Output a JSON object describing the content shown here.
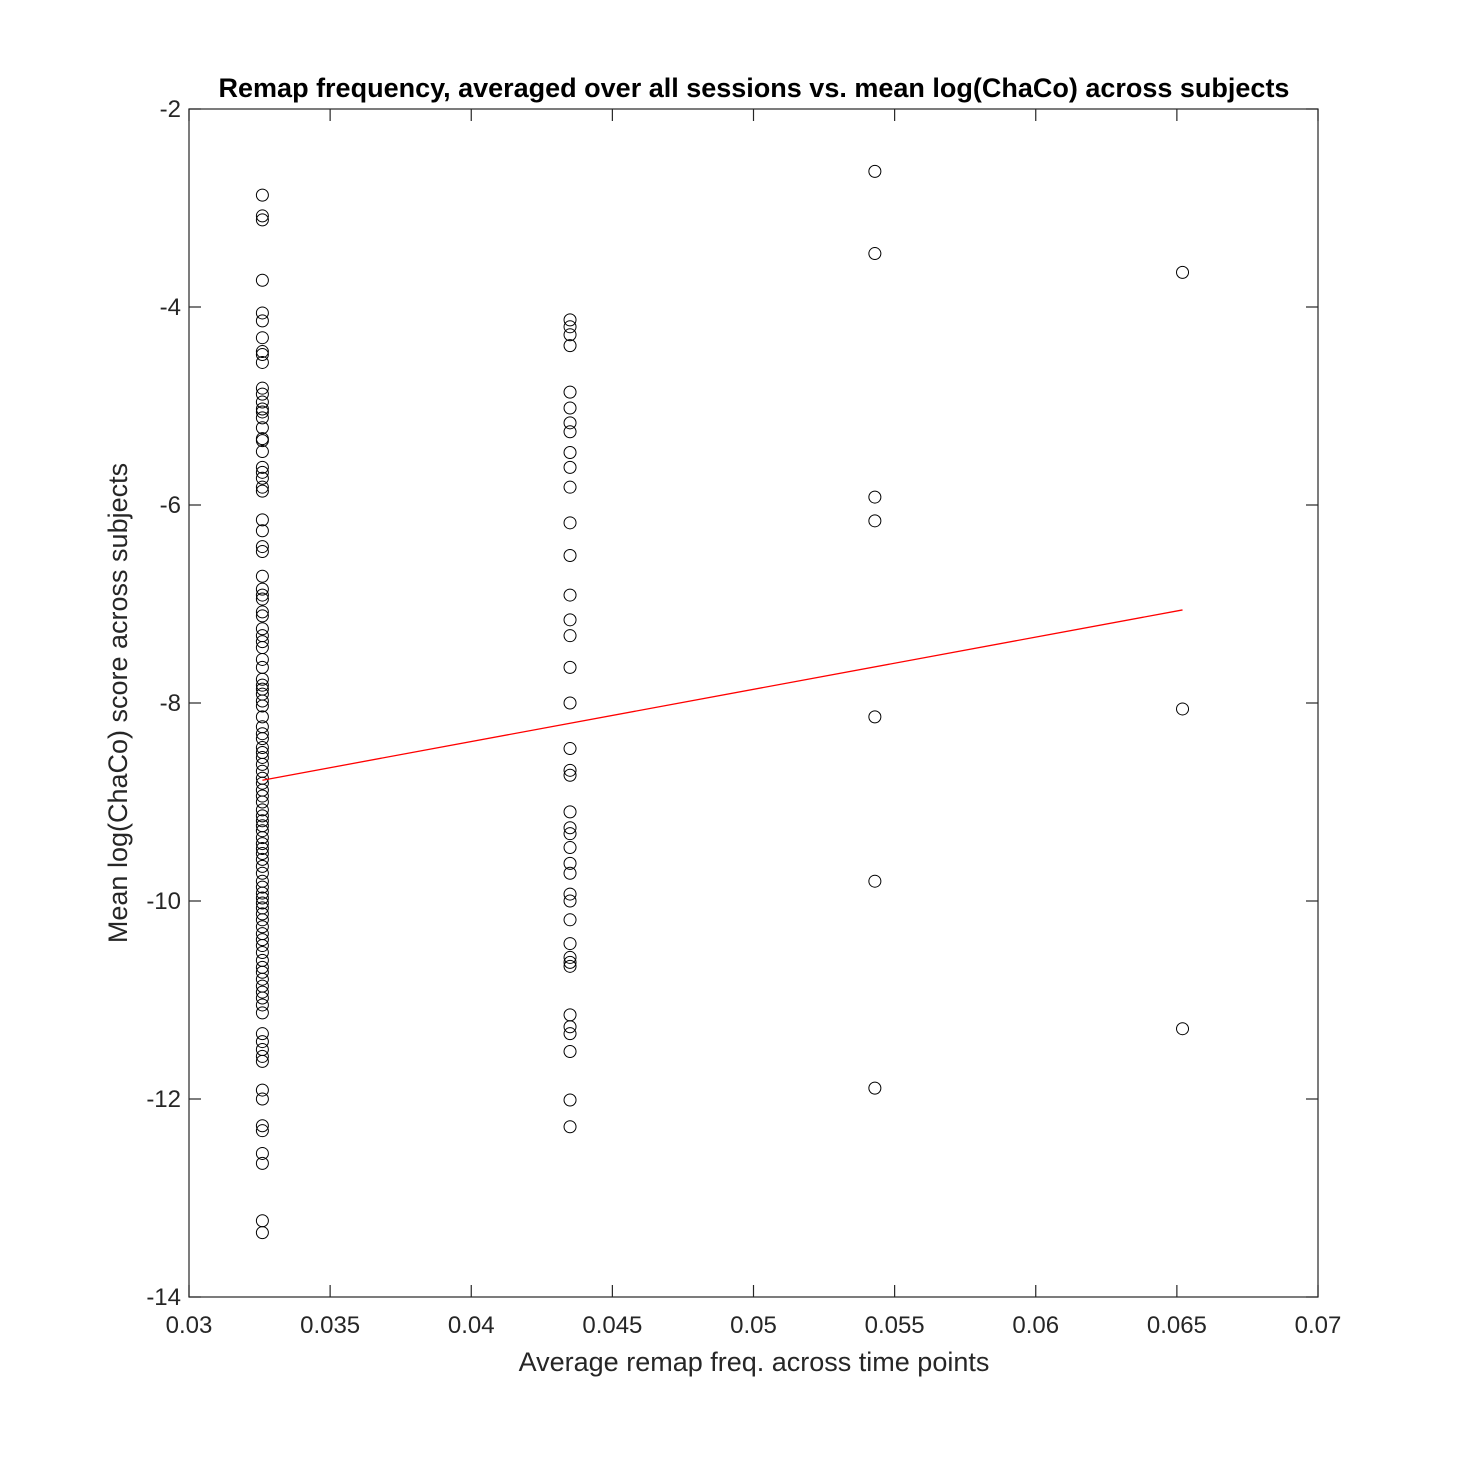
{
  "chart_data": {
    "type": "scatter",
    "title": "Remap frequency, averaged over all sessions vs. mean log(ChaCo) across subjects",
    "xlabel": "Average remap freq. across time points",
    "ylabel": "Mean log(ChaCo) score across subjects",
    "xlim": [
      0.03,
      0.07
    ],
    "ylim": [
      -14,
      -2
    ],
    "xticks": [
      0.03,
      0.035,
      0.04,
      0.045,
      0.05,
      0.055,
      0.06,
      0.065,
      0.07
    ],
    "xtick_labels": [
      "0.03",
      "0.035",
      "0.04",
      "0.045",
      "0.05",
      "0.055",
      "0.06",
      "0.065",
      "0.07"
    ],
    "yticks": [
      -14,
      -12,
      -10,
      -8,
      -6,
      -4,
      -2
    ],
    "ytick_labels": [
      "-14",
      "-12",
      "-10",
      "-8",
      "-6",
      "-4",
      "-2"
    ],
    "grid": false,
    "colors": {
      "points": "#000000",
      "fit_line": "#ff0000",
      "axes": "#262626"
    },
    "series": [
      {
        "x_value": 0.0326,
        "y": [
          -2.87,
          -3.08,
          -3.12,
          -3.73,
          -4.06,
          -4.14,
          -4.31,
          -4.45,
          -4.48,
          -4.56,
          -4.82,
          -4.88,
          -4.96,
          -5.03,
          -5.06,
          -5.12,
          -5.22,
          -5.33,
          -5.35,
          -5.46,
          -5.62,
          -5.67,
          -5.73,
          -5.82,
          -5.86,
          -6.15,
          -6.26,
          -6.42,
          -6.47,
          -6.72,
          -6.85,
          -6.91,
          -6.95,
          -7.08,
          -7.12,
          -7.25,
          -7.32,
          -7.38,
          -7.44,
          -7.56,
          -7.64,
          -7.76,
          -7.82,
          -7.86,
          -7.91,
          -7.98,
          -8.03,
          -8.14,
          -8.24,
          -8.31,
          -8.36,
          -8.45,
          -8.5,
          -8.55,
          -8.62,
          -8.69,
          -8.76,
          -8.81,
          -8.88,
          -8.94,
          -9.0,
          -9.08,
          -9.14,
          -9.19,
          -9.24,
          -9.29,
          -9.36,
          -9.42,
          -9.47,
          -9.52,
          -9.58,
          -9.65,
          -9.72,
          -9.8,
          -9.86,
          -9.92,
          -9.97,
          -10.02,
          -10.07,
          -10.13,
          -10.19,
          -10.26,
          -10.33,
          -10.39,
          -10.45,
          -10.52,
          -10.6,
          -10.67,
          -10.72,
          -10.79,
          -10.86,
          -10.92,
          -10.98,
          -11.05,
          -11.13,
          -11.34,
          -11.42,
          -11.5,
          -11.57,
          -11.62,
          -11.91,
          -12.0,
          -12.27,
          -12.32,
          -12.55,
          -12.65,
          -13.23,
          -13.35
        ]
      },
      {
        "x_value": 0.0435,
        "y": [
          -4.13,
          -4.2,
          -4.28,
          -4.39,
          -4.86,
          -5.02,
          -5.17,
          -5.26,
          -5.47,
          -5.62,
          -5.82,
          -6.18,
          -6.51,
          -6.91,
          -7.16,
          -7.32,
          -7.64,
          -8.0,
          -8.46,
          -8.68,
          -8.73,
          -9.1,
          -9.26,
          -9.32,
          -9.46,
          -9.62,
          -9.72,
          -9.93,
          -10.0,
          -10.19,
          -10.43,
          -10.57,
          -10.62,
          -10.66,
          -11.15,
          -11.27,
          -11.34,
          -11.52,
          -12.01,
          -12.28
        ]
      },
      {
        "x_value": 0.0543,
        "y": [
          -2.63,
          -3.46,
          -5.92,
          -6.16,
          -8.14,
          -9.8,
          -11.89
        ]
      },
      {
        "x_value": 0.0652,
        "y": [
          -3.65,
          -8.06,
          -11.29
        ]
      }
    ],
    "fit_line": {
      "x": [
        0.0326,
        0.0652
      ],
      "y": [
        -8.78,
        -7.06
      ]
    }
  }
}
